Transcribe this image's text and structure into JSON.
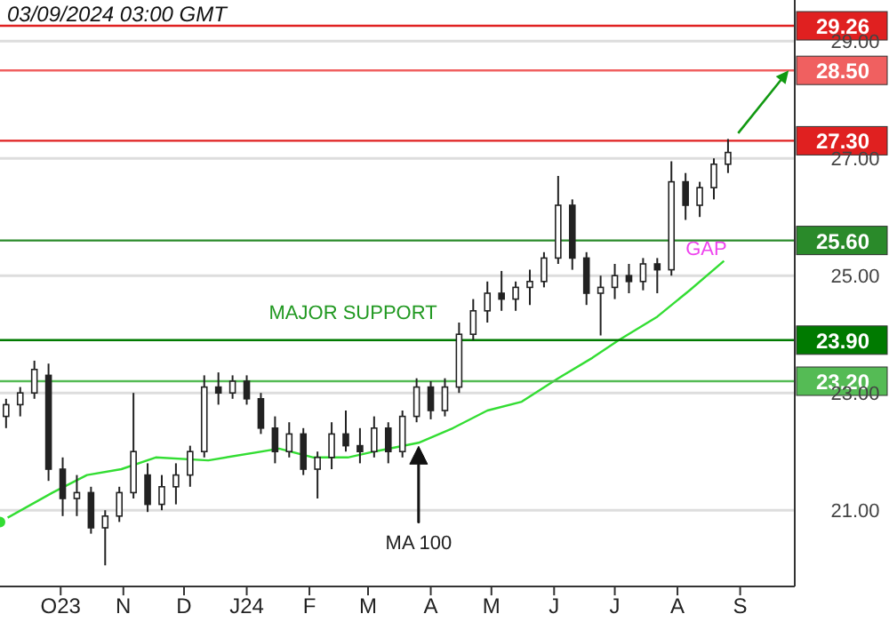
{
  "chart_data": {
    "type": "candlestick",
    "x": [
      "2023-09-04",
      "2023-09-11",
      "2023-09-18",
      "2023-09-25",
      "2023-10-02",
      "2023-10-09",
      "2023-10-16",
      "2023-10-23",
      "2023-10-30",
      "2023-11-06",
      "2023-11-13",
      "2023-11-20",
      "2023-11-27",
      "2023-12-04",
      "2023-12-11",
      "2023-12-18",
      "2023-12-25",
      "2024-01-01",
      "2024-01-08",
      "2024-01-15",
      "2024-01-22",
      "2024-01-29",
      "2024-02-05",
      "2024-02-12",
      "2024-02-19",
      "2024-02-26",
      "2024-03-04",
      "2024-03-11",
      "2024-03-18",
      "2024-03-25",
      "2024-04-01",
      "2024-04-08",
      "2024-04-15",
      "2024-04-22",
      "2024-04-29",
      "2024-05-06",
      "2024-05-13",
      "2024-05-20",
      "2024-05-27",
      "2024-06-03",
      "2024-06-10",
      "2024-06-17",
      "2024-06-24",
      "2024-07-01",
      "2024-07-08",
      "2024-07-15",
      "2024-07-22",
      "2024-07-29",
      "2024-08-05",
      "2024-08-12",
      "2024-08-19",
      "2024-08-26"
    ],
    "ohlc": [
      [
        22.6,
        22.9,
        22.4,
        22.8
      ],
      [
        22.8,
        23.1,
        22.6,
        23.0
      ],
      [
        23.0,
        23.55,
        22.9,
        23.4
      ],
      [
        23.3,
        23.5,
        21.5,
        21.7
      ],
      [
        21.7,
        21.9,
        20.9,
        21.2
      ],
      [
        21.2,
        21.6,
        20.9,
        21.3
      ],
      [
        21.3,
        21.4,
        20.6,
        20.7
      ],
      [
        20.7,
        21.0,
        20.06,
        20.9
      ],
      [
        20.9,
        21.4,
        20.8,
        21.3
      ],
      [
        21.3,
        23.0,
        21.2,
        22.0
      ],
      [
        21.6,
        21.8,
        20.97,
        21.1
      ],
      [
        21.1,
        21.6,
        21.0,
        21.4
      ],
      [
        21.4,
        21.8,
        21.1,
        21.6
      ],
      [
        21.6,
        22.1,
        21.4,
        22.0
      ],
      [
        22.0,
        23.3,
        21.9,
        23.1
      ],
      [
        23.1,
        23.35,
        22.8,
        23.0
      ],
      [
        23.0,
        23.3,
        22.9,
        23.2
      ],
      [
        23.2,
        23.3,
        22.8,
        22.9
      ],
      [
        22.9,
        23.0,
        22.3,
        22.4
      ],
      [
        22.4,
        22.6,
        21.8,
        22.0
      ],
      [
        22.0,
        22.5,
        21.9,
        22.3
      ],
      [
        22.3,
        22.4,
        21.6,
        21.7
      ],
      [
        21.7,
        22.0,
        21.2,
        21.9
      ],
      [
        21.9,
        22.5,
        21.7,
        22.3
      ],
      [
        22.3,
        22.7,
        22.0,
        22.1
      ],
      [
        22.1,
        22.4,
        21.8,
        22.0
      ],
      [
        22.0,
        22.6,
        21.9,
        22.4
      ],
      [
        22.4,
        22.5,
        21.8,
        22.0
      ],
      [
        22.0,
        22.7,
        21.9,
        22.6
      ],
      [
        22.6,
        23.25,
        22.5,
        23.1
      ],
      [
        23.1,
        23.2,
        22.55,
        22.7
      ],
      [
        22.7,
        23.25,
        22.6,
        23.1
      ],
      [
        23.1,
        24.2,
        23.0,
        24.0
      ],
      [
        24.0,
        24.6,
        23.9,
        24.4
      ],
      [
        24.4,
        24.9,
        24.2,
        24.7
      ],
      [
        24.7,
        25.08,
        24.4,
        24.6
      ],
      [
        24.6,
        24.9,
        24.4,
        24.8
      ],
      [
        24.8,
        25.1,
        24.5,
        24.9
      ],
      [
        24.9,
        25.4,
        24.8,
        25.3
      ],
      [
        25.3,
        26.7,
        25.2,
        26.2
      ],
      [
        26.2,
        26.3,
        25.1,
        25.3
      ],
      [
        25.3,
        25.4,
        24.5,
        24.7
      ],
      [
        24.7,
        25.0,
        23.98,
        24.8
      ],
      [
        24.8,
        25.2,
        24.6,
        25.0
      ],
      [
        25.0,
        25.2,
        24.7,
        24.9
      ],
      [
        24.9,
        25.3,
        24.75,
        25.2
      ],
      [
        25.2,
        25.3,
        24.7,
        25.1
      ],
      [
        25.1,
        26.95,
        25.0,
        26.6
      ],
      [
        26.6,
        26.75,
        25.95,
        26.2
      ],
      [
        26.2,
        26.6,
        26.0,
        26.5
      ],
      [
        26.5,
        27.0,
        26.3,
        26.9
      ],
      [
        26.9,
        27.33,
        26.75,
        27.1
      ]
    ],
    "color": "#222222",
    "series": [
      {
        "type": "line",
        "color": "#33dd33",
        "x": [
          "2023-09-01",
          "2023-09-27",
          "2023-10-14",
          "2023-10-31",
          "2023-11-17",
          "2023-12-13",
          "2024-01-17",
          "2024-02-03",
          "2024-02-20",
          "2024-03-04",
          "2024-03-26",
          "2024-04-12",
          "2024-04-29",
          "2024-05-16",
          "2024-06-03",
          "2024-06-20",
          "2024-07-03",
          "2024-07-22",
          "2024-08-07",
          "2024-08-24"
        ],
        "values": [
          20.8,
          21.3,
          21.6,
          21.7,
          21.9,
          21.85,
          22.05,
          21.9,
          21.9,
          22.0,
          22.15,
          22.4,
          22.7,
          22.85,
          23.25,
          23.6,
          23.9,
          24.3,
          24.75,
          25.25
        ]
      }
    ],
    "xlim": [
      "2023-09-01",
      "2024-09-28"
    ],
    "xticks": [
      {
        "value": "2023-10-01",
        "label": "O23"
      },
      {
        "value": "2023-11-01",
        "label": "N"
      },
      {
        "value": "2023-12-01",
        "label": "D"
      },
      {
        "value": "2024-01-01",
        "label": "J24"
      },
      {
        "value": "2024-02-01",
        "label": "F"
      },
      {
        "value": "2024-03-01",
        "label": "M"
      },
      {
        "value": "2024-04-01",
        "label": "A"
      },
      {
        "value": "2024-05-01",
        "label": "M"
      },
      {
        "value": "2024-06-01",
        "label": "J"
      },
      {
        "value": "2024-07-01",
        "label": "J"
      },
      {
        "value": "2024-08-01",
        "label": "A"
      },
      {
        "value": "2024-09-01",
        "label": "S"
      }
    ],
    "ylim": [
      19.7,
      29.7
    ],
    "yticks": [
      {
        "value": 21,
        "label": "21.00"
      },
      {
        "value": 23,
        "label": "23.00"
      },
      {
        "value": 25,
        "label": "25.00"
      },
      {
        "value": 27,
        "label": "27.00"
      },
      {
        "value": 29,
        "label": "29.00"
      }
    ],
    "grid": "y",
    "ref_lines": [
      {
        "axis": "y",
        "value": 29.26,
        "label": "29.26",
        "color": "#e02020"
      },
      {
        "axis": "y",
        "value": 28.5,
        "label": "28.50",
        "color": "#f06060"
      },
      {
        "axis": "y",
        "value": 27.3,
        "label": "27.30",
        "color": "#e02020"
      },
      {
        "axis": "y",
        "value": 25.6,
        "label": "25.60",
        "color": "#2a8a2a"
      },
      {
        "axis": "y",
        "value": 23.9,
        "label": "23.90",
        "color": "#007a00"
      },
      {
        "axis": "y",
        "value": 23.2,
        "label": "23.20",
        "color": "#55bb55"
      }
    ],
    "annotations": [
      "03/09/2024 03:00 GMT",
      {
        "text": "MAJOR SUPPORT",
        "x": "2024-01-12",
        "y": 23.9
      },
      {
        "text": "GAP",
        "x": "2024-08-05",
        "y": 25.47
      },
      "MA 100"
    ]
  }
}
